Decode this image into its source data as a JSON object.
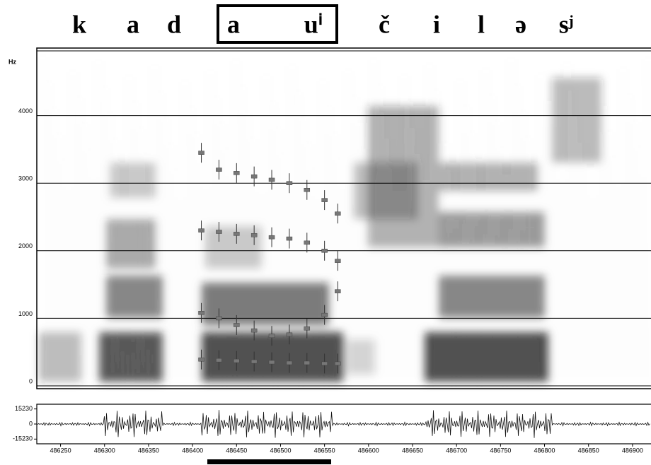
{
  "chart_data": [
    {
      "type": "spectrogram",
      "segments": [
        "k",
        "a",
        "d",
        "a",
        "uⁱ",
        "č",
        "i",
        "l",
        "ə",
        "sʲ"
      ],
      "y_label": "Hz",
      "xlim": [
        486223,
        486921
      ],
      "ylim": [
        0,
        5000
      ],
      "yticks": [
        0,
        1000,
        2000,
        3000,
        4000
      ],
      "grid": true,
      "x": [
        486410,
        486430,
        486450,
        486470,
        486490,
        486510,
        486530,
        486550,
        486565
      ],
      "series": [
        {
          "color": "#777777",
          "values": [
            390,
            380,
            370,
            360,
            350,
            340,
            340,
            330,
            330
          ]
        },
        {
          "color": "#777777",
          "values": [
            1080,
            1000,
            900,
            820,
            740,
            760,
            850,
            1050,
            1400
          ]
        },
        {
          "color": "#777777",
          "values": [
            2300,
            2280,
            2250,
            2230,
            2200,
            2180,
            2120,
            2000,
            1850
          ]
        },
        {
          "color": "#777777",
          "values": [
            3450,
            3200,
            3150,
            3100,
            3050,
            3000,
            2900,
            2750,
            2550
          ]
        }
      ]
    },
    {
      "type": "waveform",
      "xlim": [
        486223,
        486921
      ],
      "ylim": [
        -20000,
        20000
      ],
      "yticks": [
        15230,
        0,
        -15230
      ],
      "xticks": [
        486250,
        486300,
        486350,
        486400,
        486450,
        486500,
        486550,
        486600,
        486650,
        486700,
        486750,
        486800,
        486850,
        486900
      ]
    }
  ]
}
